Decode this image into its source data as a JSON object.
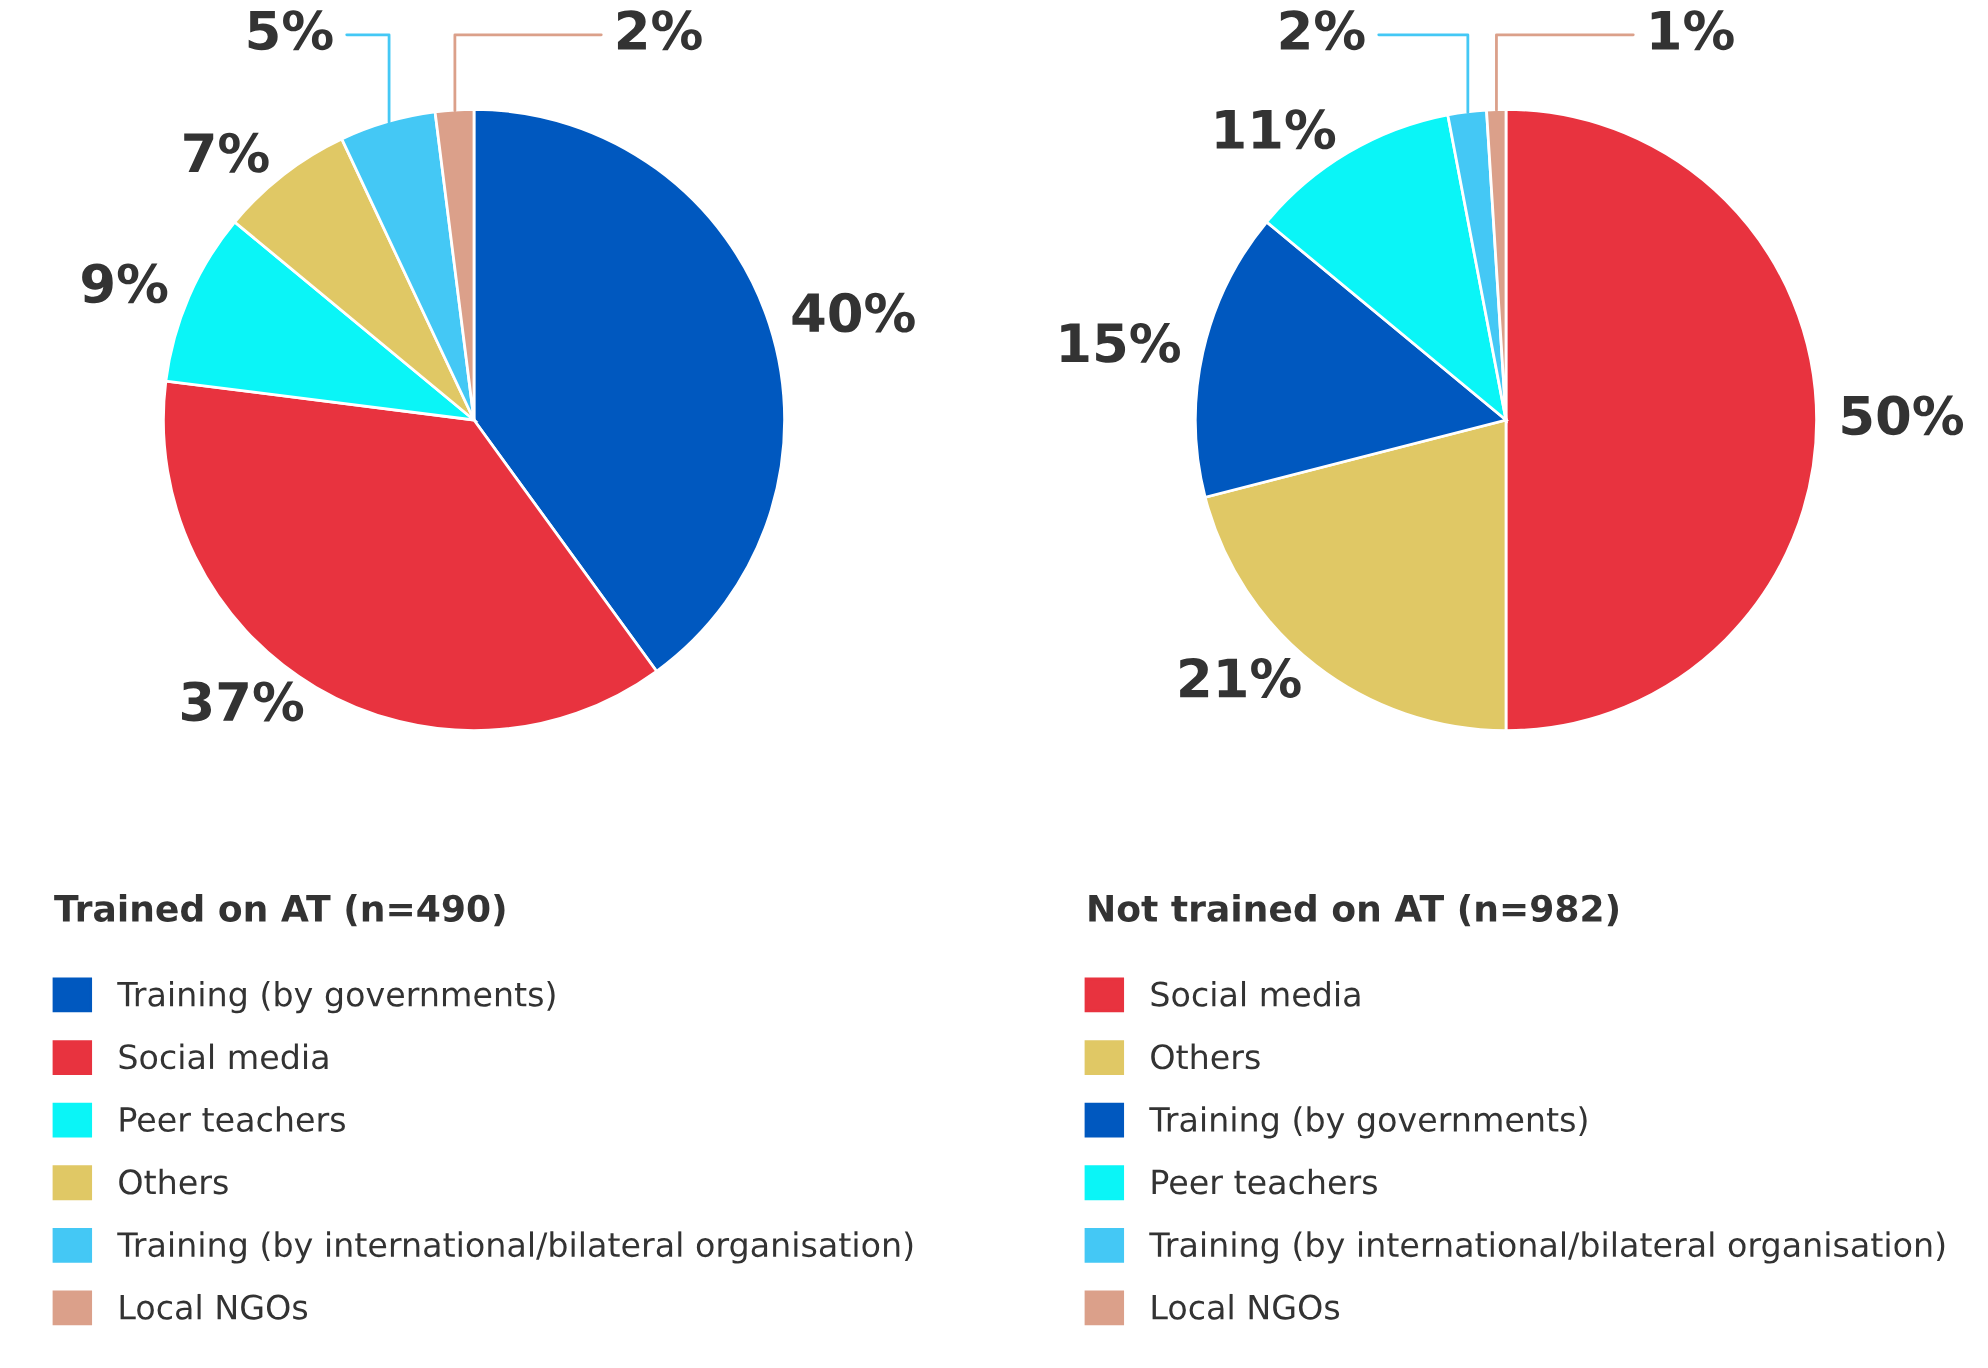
{
  "chart_data": [
    {
      "type": "pie",
      "legend_title": "Trained on AT (n=490)",
      "legend": "bottom",
      "categories": [
        "Training (by governments)",
        "Social media",
        "Peer teachers",
        "Others",
        "Training (by international/bilateral organisation)",
        "Local NGOs"
      ],
      "values": [
        40,
        37,
        9,
        7,
        5,
        2
      ],
      "value_labels": [
        "40%",
        "37%",
        "9%",
        "7%",
        "5%",
        "2%"
      ],
      "colors": [
        "#0058bf",
        "#e8333f",
        "#0af5f7",
        "#e0c865",
        "#44c8f5",
        "#dba08a"
      ]
    },
    {
      "type": "pie",
      "legend_title": "Not trained on AT (n=982)",
      "legend": "bottom",
      "categories": [
        "Social media",
        "Others",
        "Training (by governments)",
        "Peer teachers",
        "Training (by international/bilateral organisation)",
        "Local NGOs"
      ],
      "values": [
        50,
        21,
        15,
        11,
        2,
        1
      ],
      "value_labels": [
        "50%",
        "21%",
        "15%",
        "11%",
        "2%",
        "1%"
      ],
      "colors": [
        "#e8333f",
        "#e0c865",
        "#0058bf",
        "#0af5f7",
        "#44c8f5",
        "#dba08a"
      ]
    }
  ]
}
